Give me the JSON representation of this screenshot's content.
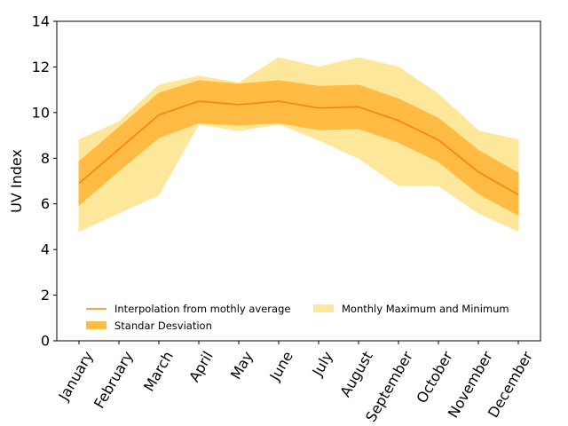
{
  "chart_data": {
    "type": "area",
    "categories": [
      "January",
      "February",
      "March",
      "April",
      "May",
      "June",
      "July",
      "August",
      "September",
      "October",
      "November",
      "December"
    ],
    "ylabel": "UV Index",
    "xlabel": "",
    "title": "",
    "ylim": [
      0,
      14
    ],
    "yticks": [
      0,
      2,
      4,
      6,
      8,
      10,
      12,
      14
    ],
    "grid": false,
    "legend_position": "lower-center",
    "colors": {
      "line": "#ff7f0e",
      "std_band": "#ffbb44",
      "minmax_band": "#fce79a"
    },
    "series": [
      {
        "name": "Interpolation from mothly average",
        "kind": "line",
        "values": [
          6.9,
          8.4,
          9.9,
          10.5,
          10.35,
          10.5,
          10.2,
          10.25,
          9.65,
          8.8,
          7.4,
          6.4
        ]
      },
      {
        "name": "Standar Desviation",
        "kind": "band",
        "lower": [
          5.95,
          7.45,
          8.9,
          9.55,
          9.45,
          9.55,
          9.25,
          9.3,
          8.7,
          7.85,
          6.45,
          5.5
        ],
        "upper": [
          7.85,
          9.35,
          10.85,
          11.4,
          11.25,
          11.4,
          11.15,
          11.2,
          10.6,
          9.75,
          8.35,
          7.35
        ]
      },
      {
        "name": "Monthly Maximum and Minimum",
        "kind": "band",
        "lower": [
          4.8,
          5.6,
          6.4,
          9.5,
          9.2,
          9.5,
          8.8,
          8.0,
          6.8,
          6.8,
          5.6,
          4.8
        ],
        "upper": [
          8.8,
          9.6,
          11.2,
          11.6,
          11.3,
          12.4,
          12.0,
          12.4,
          12.0,
          10.8,
          9.2,
          8.8
        ]
      }
    ]
  }
}
